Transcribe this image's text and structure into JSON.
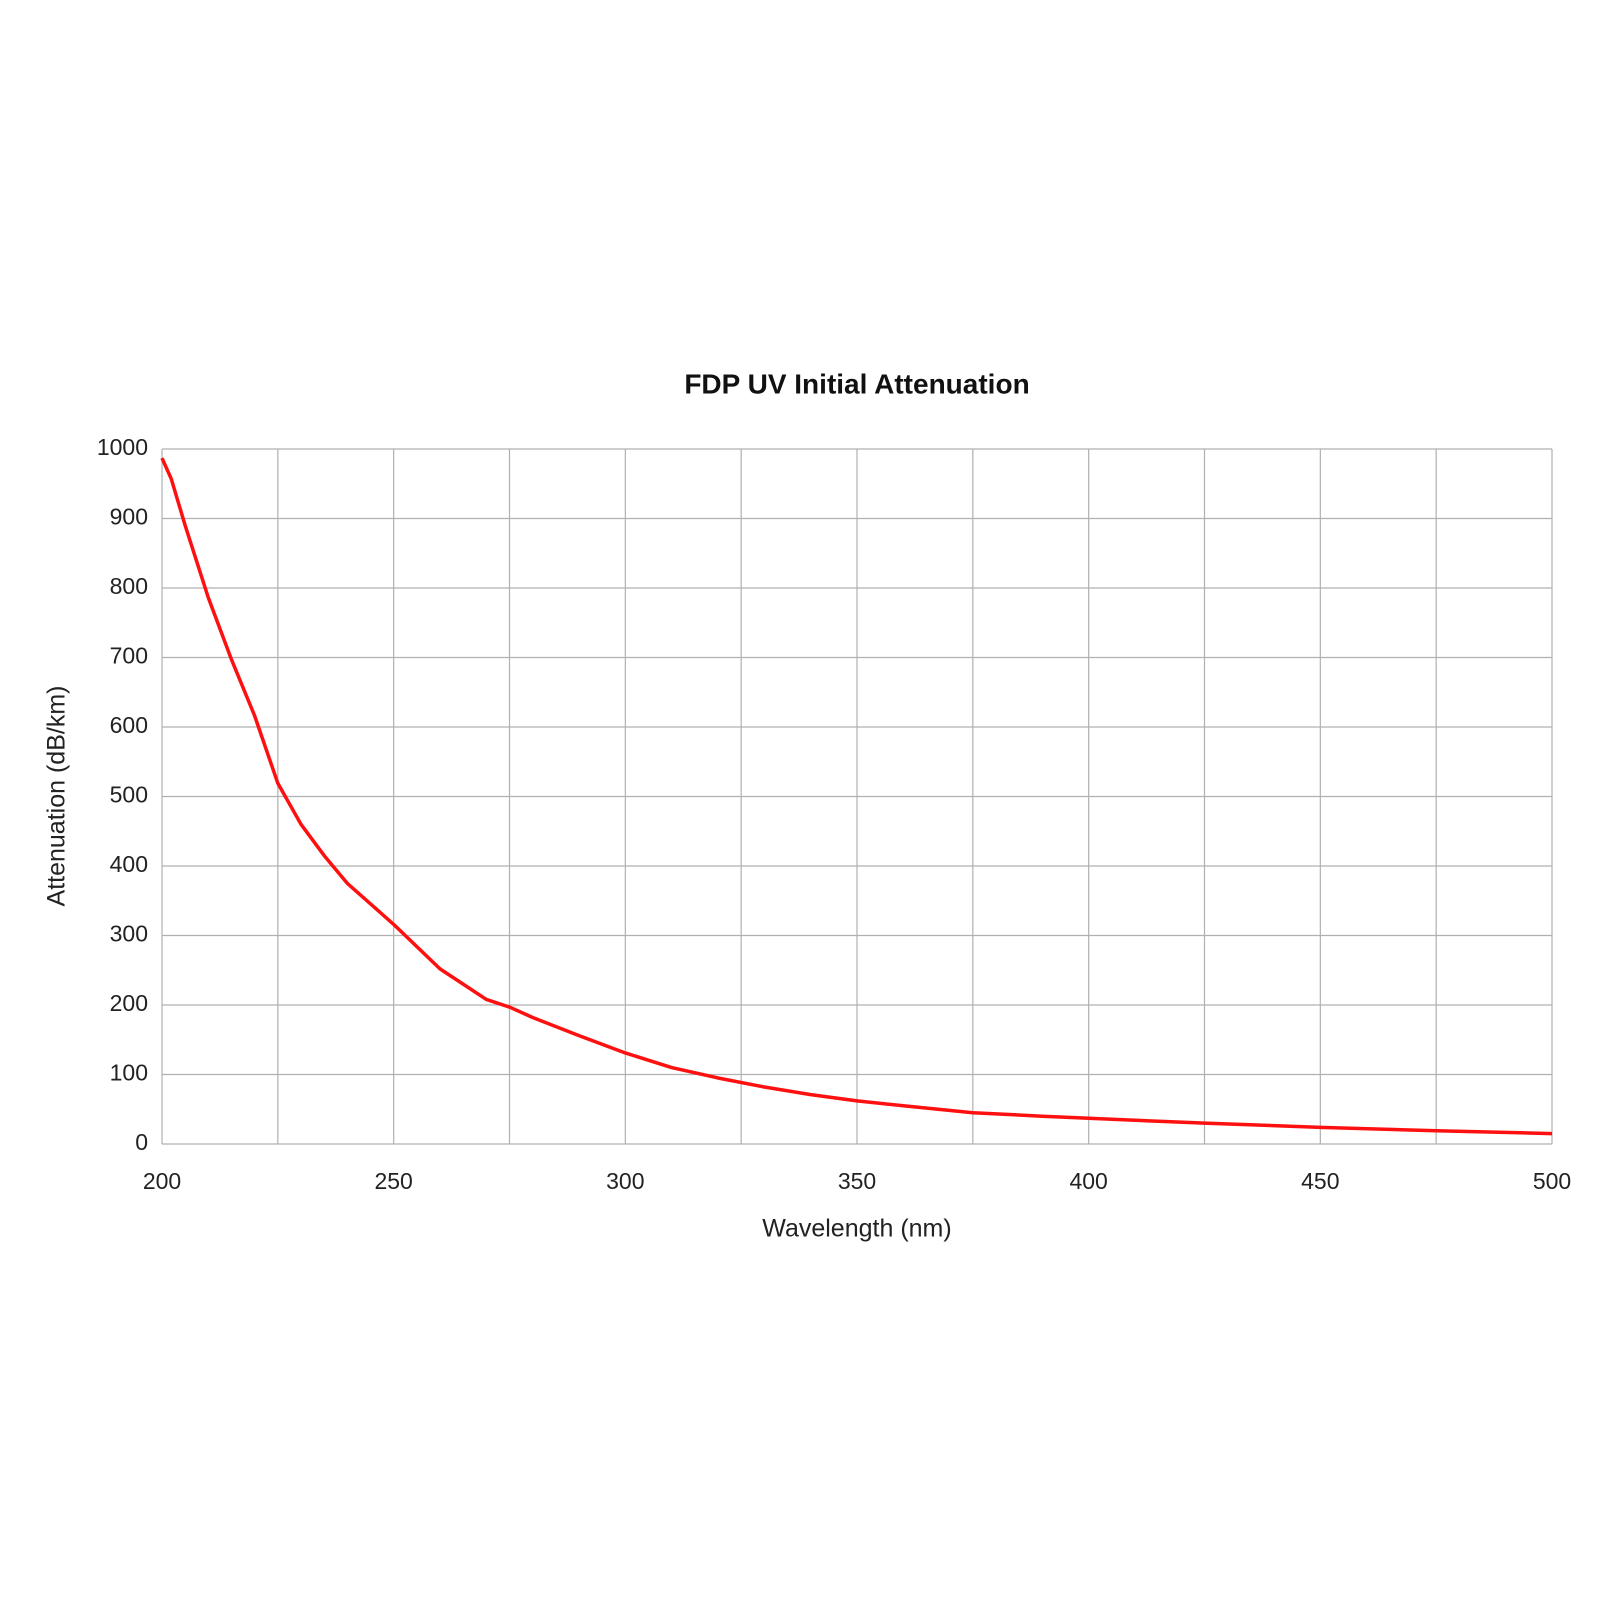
{
  "chart_data": {
    "type": "line",
    "title": "FDP UV Initial Attenuation",
    "x_label": "Wavelength (nm)",
    "y_label": "Attenuation (dB/km)",
    "x": [
      200,
      202,
      205,
      210,
      215,
      220,
      225,
      230,
      235,
      240,
      250,
      260,
      270,
      275,
      280,
      290,
      300,
      310,
      320,
      330,
      340,
      350,
      360,
      375,
      390,
      400,
      425,
      450,
      475,
      500
    ],
    "series": [
      {
        "name": "Attenuation",
        "color": "#ff1010",
        "values": [
          987,
          957,
          890,
          786,
          697,
          616,
          519,
          460,
          415,
          375,
          316,
          252,
          208,
          197,
          182,
          156,
          131,
          110,
          95,
          82,
          71,
          62,
          55,
          45,
          40,
          37,
          30,
          24,
          19,
          15
        ]
      }
    ],
    "xlim": [
      200,
      500
    ],
    "xticks": [
      200,
      250,
      300,
      350,
      400,
      450,
      500
    ],
    "x_grid_minor": [
      225,
      275,
      325,
      375,
      425,
      475
    ],
    "ylim": [
      0,
      1000
    ],
    "yticks": [
      0,
      100,
      200,
      300,
      400,
      500,
      600,
      700,
      800,
      900,
      1000
    ],
    "grid": true
  }
}
